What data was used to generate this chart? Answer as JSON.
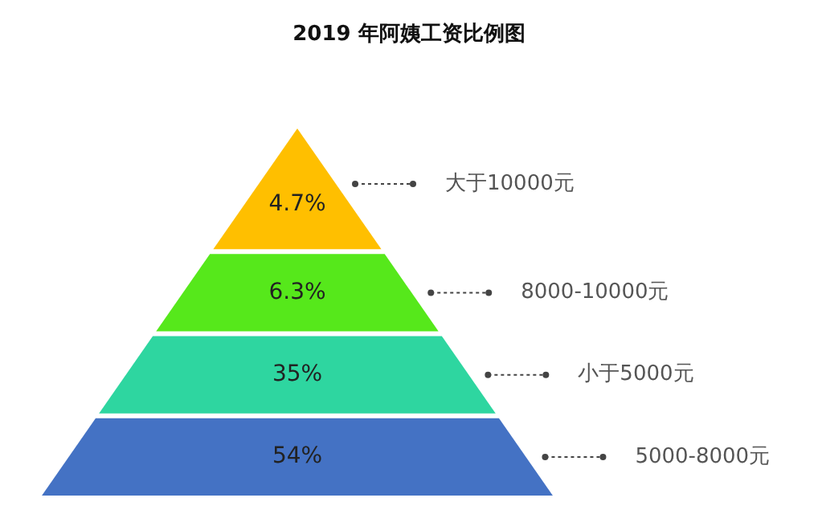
{
  "chart_data": {
    "type": "other",
    "title": "2019 年阿姨工资比例图",
    "categories": [
      "大于10000元",
      "8000-10000元",
      "小于5000元",
      "5000-8000元"
    ],
    "values": [
      4.7,
      6.3,
      35,
      54
    ],
    "value_labels": [
      "4.7%",
      "6.3%",
      "35%",
      "54%"
    ],
    "colors": [
      "#ffbf00",
      "#56e81b",
      "#2ed6a0",
      "#4472c4"
    ]
  }
}
